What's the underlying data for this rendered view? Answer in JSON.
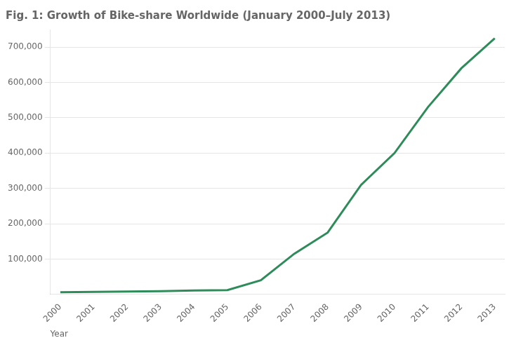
{
  "chart_data": {
    "type": "line",
    "title": "Fig. 1: Growth of Bike-share Worldwide (January 2000–July 2013)",
    "xlabel": "Year",
    "x": [
      2000,
      2001,
      2002,
      2003,
      2004,
      2005,
      2006,
      2007,
      2008,
      2009,
      2010,
      2011,
      2012,
      2013
    ],
    "values": [
      6000,
      7000,
      8000,
      9000,
      11000,
      12000,
      40000,
      115000,
      175000,
      310000,
      400000,
      530000,
      640000,
      725000
    ],
    "color": "#2e8b5a",
    "xlim": [
      1999.7,
      2013.3
    ],
    "xticks": [
      2000,
      2001,
      2002,
      2003,
      2004,
      2005,
      2006,
      2007,
      2008,
      2009,
      2010,
      2011,
      2012,
      2013
    ],
    "ylim": [
      0,
      750000
    ],
    "yticks": [
      {
        "value": 100000,
        "label": "100,000"
      },
      {
        "value": 200000,
        "label": "200,000"
      },
      {
        "value": 300000,
        "label": "300,000"
      },
      {
        "value": 400000,
        "label": "400,000"
      },
      {
        "value": 500000,
        "label": "500,000"
      },
      {
        "value": 600000,
        "label": "600,000"
      },
      {
        "value": 700000,
        "label": "700,000"
      }
    ],
    "grid": "y"
  }
}
